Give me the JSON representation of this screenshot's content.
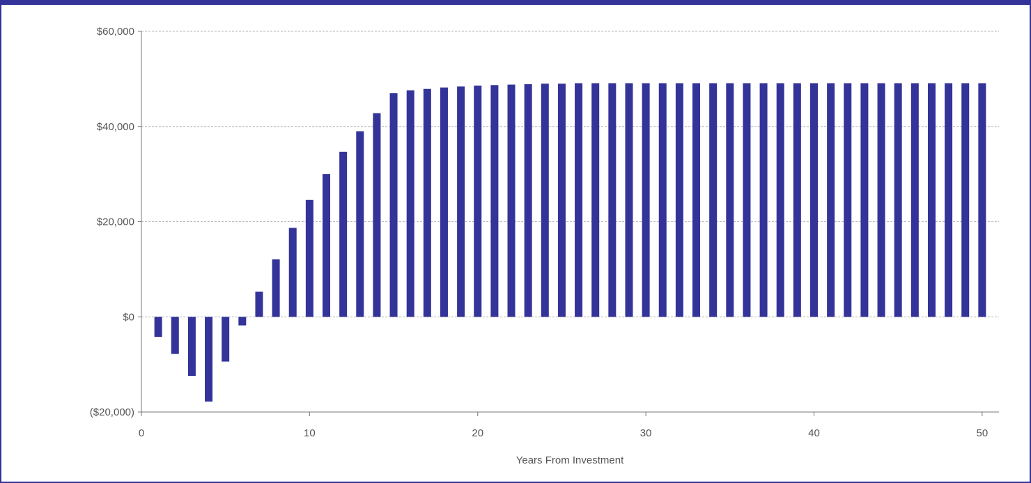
{
  "colors": {
    "bar": "#333399",
    "frame": "#333399",
    "grid": "#b5b5b5",
    "axis": "#777777",
    "text": "#555555"
  },
  "chart_data": {
    "type": "bar",
    "title": "",
    "xlabel": "Years From Investment",
    "ylabel": "",
    "xlim": [
      0,
      51
    ],
    "ylim": [
      -20000,
      60000
    ],
    "grid": true,
    "legend": "none",
    "x_ticks": [
      0,
      10,
      20,
      30,
      40,
      50
    ],
    "x_tick_labels": [
      "0",
      "10",
      "20",
      "30",
      "40",
      "50"
    ],
    "y_ticks": [
      -20000,
      0,
      20000,
      40000,
      60000
    ],
    "y_tick_labels": [
      "($20,000)",
      "$0",
      "$20,000",
      "$40,000",
      "$60,000"
    ],
    "x": [
      1,
      2,
      3,
      4,
      5,
      6,
      7,
      8,
      9,
      10,
      11,
      12,
      13,
      14,
      15,
      16,
      17,
      18,
      19,
      20,
      21,
      22,
      23,
      24,
      25,
      26,
      27,
      28,
      29,
      30,
      31,
      32,
      33,
      34,
      35,
      36,
      37,
      38,
      39,
      40,
      41,
      42,
      43,
      44,
      45,
      46,
      47,
      48,
      49,
      50
    ],
    "values": [
      -4200,
      -7800,
      -12400,
      -17800,
      -9400,
      -1800,
      5300,
      12100,
      18700,
      24600,
      30000,
      34700,
      39000,
      42800,
      47000,
      47600,
      47900,
      48200,
      48400,
      48600,
      48700,
      48800,
      48900,
      49000,
      49000,
      49100,
      49100,
      49100,
      49100,
      49100,
      49100,
      49100,
      49100,
      49100,
      49100,
      49100,
      49100,
      49100,
      49100,
      49100,
      49100,
      49100,
      49100,
      49100,
      49100,
      49100,
      49100,
      49100,
      49100,
      49100
    ]
  }
}
